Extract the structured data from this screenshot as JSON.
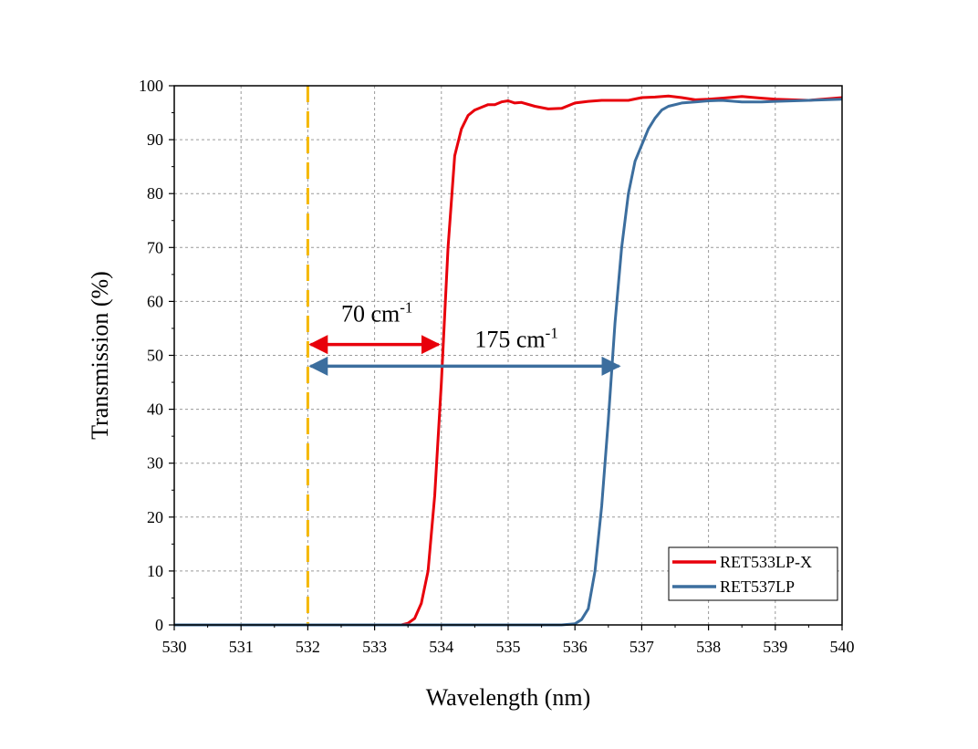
{
  "chart_data": {
    "type": "line",
    "xlabel": "Wavelength (nm)",
    "ylabel": "Transmission (%)",
    "xlim": [
      530,
      540
    ],
    "ylim": [
      0,
      100
    ],
    "xticks": [
      530,
      531,
      532,
      533,
      534,
      535,
      536,
      537,
      538,
      539,
      540
    ],
    "yticks": [
      0,
      10,
      20,
      30,
      40,
      50,
      60,
      70,
      80,
      90,
      100
    ],
    "grid": true,
    "legend_position": "bottom-right",
    "series": [
      {
        "name": "RET533LP-X",
        "color": "#e8000b",
        "x": [
          530,
          533.4,
          533.5,
          533.6,
          533.7,
          533.8,
          533.9,
          534.0,
          534.1,
          534.2,
          534.3,
          534.4,
          534.5,
          534.6,
          534.7,
          534.8,
          534.9,
          535.0,
          535.1,
          535.2,
          535.4,
          535.6,
          535.8,
          536.0,
          536.2,
          536.4,
          536.6,
          536.8,
          537.0,
          537.2,
          537.4,
          537.6,
          537.8,
          538.0,
          538.2,
          538.5,
          538.8,
          539.0,
          539.5,
          540.0
        ],
        "y": [
          0,
          0,
          0.3,
          1.2,
          4,
          10,
          24,
          45,
          70,
          87,
          92,
          94.5,
          95.5,
          96,
          96.5,
          96.5,
          97,
          97.2,
          96.8,
          96.9,
          96.2,
          95.7,
          95.8,
          96.8,
          97.1,
          97.3,
          97.3,
          97.3,
          97.8,
          97.9,
          98.1,
          97.8,
          97.4,
          97.5,
          97.7,
          98.0,
          97.7,
          97.5,
          97.3,
          97.8
        ]
      },
      {
        "name": "RET537LP",
        "color": "#3c6e9e",
        "x": [
          530,
          535.8,
          536.0,
          536.1,
          536.2,
          536.3,
          536.4,
          536.5,
          536.6,
          536.7,
          536.8,
          536.9,
          537.0,
          537.1,
          537.2,
          537.3,
          537.4,
          537.6,
          537.8,
          538.0,
          538.2,
          538.5,
          538.8,
          539.0,
          539.5,
          540.0
        ],
        "y": [
          0,
          0,
          0.2,
          1,
          3,
          10,
          22,
          38,
          56,
          70,
          80,
          86,
          89,
          92,
          94,
          95.5,
          96.2,
          96.8,
          97,
          97.2,
          97.3,
          97.0,
          97.0,
          97.1,
          97.3,
          97.5
        ]
      }
    ],
    "reference_line": {
      "x": 532,
      "color": "#f5b800",
      "style": "dashed"
    },
    "annotations": [
      {
        "text": "70 cm",
        "superscript": "-1",
        "x_from": 532,
        "x_to": 534,
        "y": 52,
        "color": "#e8000b"
      },
      {
        "text": "175 cm",
        "superscript": "-1",
        "x_from": 532,
        "x_to": 536.7,
        "y": 48,
        "color": "#3c6e9e"
      }
    ]
  }
}
